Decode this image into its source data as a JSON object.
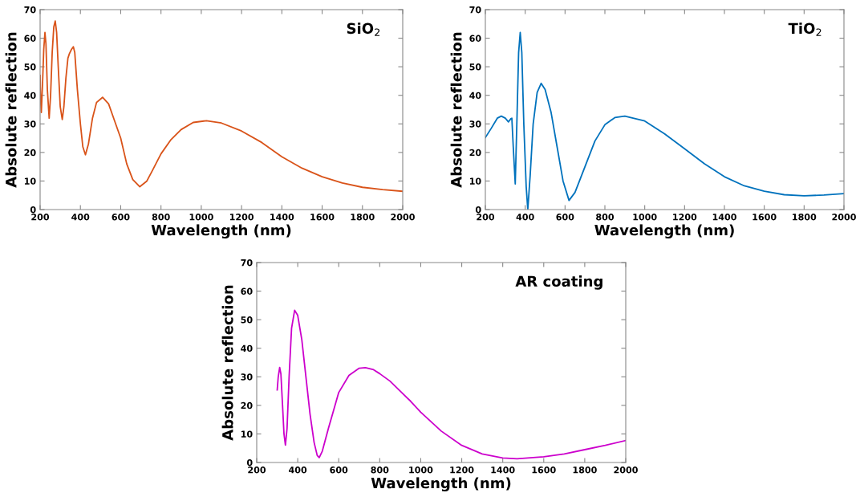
{
  "chart_data": [
    {
      "type": "line",
      "title": "SiO$_{2}$",
      "xlabel": "Wavelength (nm)",
      "ylabel": "Absolute reflection",
      "xlim": [
        200,
        2000
      ],
      "ylim": [
        0,
        70
      ],
      "xticks": [
        200,
        400,
        600,
        800,
        1000,
        1200,
        1400,
        1600,
        1800,
        2000
      ],
      "yticks": [
        0,
        10,
        20,
        30,
        40,
        50,
        60,
        70
      ],
      "grid": false,
      "series": [
        {
          "color": "#d95319",
          "x": [
            200,
            203,
            206,
            212,
            218,
            224,
            229,
            236,
            245,
            252,
            260,
            268,
            275,
            282,
            290,
            300,
            310,
            318,
            328,
            338,
            345,
            355,
            365,
            372,
            385,
            400,
            412,
            425,
            440,
            460,
            480,
            510,
            540,
            570,
            600,
            630,
            660,
            695,
            730,
            760,
            800,
            850,
            900,
            960,
            1025,
            1100,
            1200,
            1300,
            1400,
            1500,
            1600,
            1700,
            1800,
            1900,
            2000
          ],
          "values": [
            47,
            38,
            34,
            44,
            56,
            62,
            58,
            42,
            32,
            40,
            55,
            64,
            66,
            62,
            50,
            36,
            31.5,
            36,
            46,
            53,
            54.5,
            56,
            57,
            55,
            42,
            30,
            22,
            19.2,
            23,
            32,
            37.5,
            39.3,
            37,
            31,
            25,
            16,
            10.5,
            8,
            10,
            14,
            19.5,
            24.5,
            28,
            30.5,
            31.1,
            30.3,
            27.5,
            23.5,
            18.5,
            14.5,
            11.5,
            9.3,
            7.8,
            7,
            6.4
          ]
        }
      ]
    },
    {
      "type": "line",
      "title": "TiO$_{2}$",
      "xlabel": "Wavelength (nm)",
      "ylabel": "Absolute reflection",
      "xlim": [
        200,
        2000
      ],
      "ylim": [
        0,
        70
      ],
      "xticks": [
        200,
        400,
        600,
        800,
        1000,
        1200,
        1400,
        1600,
        1800,
        2000
      ],
      "yticks": [
        0,
        10,
        20,
        30,
        40,
        50,
        60,
        70
      ],
      "grid": false,
      "series": [
        {
          "color": "#0072bd",
          "x": [
            200,
            230,
            260,
            280,
            300,
            316,
            328,
            333,
            340,
            350,
            358,
            367,
            375,
            383,
            393,
            405,
            413,
            425,
            440,
            460,
            480,
            500,
            530,
            560,
            590,
            620,
            650,
            700,
            750,
            800,
            850,
            900,
            1000,
            1100,
            1200,
            1300,
            1400,
            1500,
            1600,
            1700,
            1800,
            1900,
            2000
          ],
          "values": [
            25.2,
            28.5,
            32,
            32.7,
            32,
            30.7,
            31.8,
            32,
            22,
            9,
            30,
            55,
            62,
            55,
            30,
            8,
            0,
            12,
            30,
            41,
            44.2,
            42,
            34,
            22,
            10,
            3.2,
            6,
            15,
            24,
            29.7,
            32.2,
            32.7,
            31,
            26.5,
            21.3,
            16,
            11.5,
            8.3,
            6.4,
            5.2,
            4.8,
            5.1,
            5.6
          ]
        }
      ]
    },
    {
      "type": "line",
      "title": "AR coating",
      "xlabel": "Wavelength (nm)",
      "ylabel": "Absolute reflection",
      "xlim": [
        200,
        2000
      ],
      "ylim": [
        0,
        70
      ],
      "xticks": [
        200,
        400,
        600,
        800,
        1000,
        1200,
        1400,
        1600,
        1800,
        2000
      ],
      "yticks": [
        0,
        10,
        20,
        30,
        40,
        50,
        60,
        70
      ],
      "grid": false,
      "series": [
        {
          "color": "#cc00cc",
          "x": [
            300,
            305,
            312,
            318,
            326,
            333,
            340,
            348,
            358,
            370,
            385,
            400,
            420,
            440,
            460,
            480,
            495,
            505,
            520,
            550,
            600,
            650,
            700,
            730,
            770,
            800,
            850,
            900,
            950,
            1000,
            1100,
            1200,
            1300,
            1400,
            1470,
            1600,
            1700,
            1800,
            1900,
            2000
          ],
          "values": [
            25.4,
            30,
            33.3,
            31,
            20,
            10,
            6.1,
            12,
            30,
            47,
            53.3,
            51.5,
            43,
            30,
            17,
            7,
            2.5,
            1.7,
            4,
            12,
            24.5,
            30.5,
            33,
            33.2,
            32.5,
            31.1,
            28.5,
            25,
            21.5,
            17.6,
            11,
            6,
            3,
            1.6,
            1.3,
            2,
            3,
            4.5,
            6,
            7.7
          ]
        }
      ]
    }
  ]
}
